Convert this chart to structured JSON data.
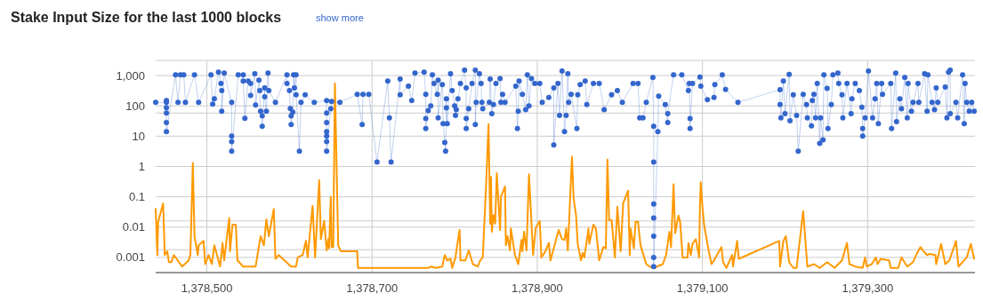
{
  "chart_data": {
    "type": "line",
    "title": "Stake Input Size for the last 1000 blocks",
    "subtitle": "show more",
    "log": "y",
    "grid": true,
    "xlim": [
      1378438,
      1379430
    ],
    "ylim": [
      0.000316,
      3162
    ],
    "xticks": [
      {
        "value": 1378500,
        "label": "1,378,500"
      },
      {
        "value": 1378700,
        "label": "1,378,700"
      },
      {
        "value": 1378900,
        "label": "1,378,900"
      },
      {
        "value": 1379100,
        "label": "1,379,100"
      },
      {
        "value": 1379300,
        "label": "1,379,300"
      }
    ],
    "yticks": [
      0.001,
      {
        "value": 0.0018,
        "label": null
      },
      0.01,
      {
        "value": 0.016,
        "label": null
      },
      0.1,
      1,
      10,
      {
        "value": 58,
        "label": null
      },
      100,
      {
        "value": 1000,
        "label": "1,000"
      },
      {
        "value": 3162,
        "label": null
      }
    ],
    "series": [
      {
        "type": "line",
        "marker": "none",
        "color": "#ff9900",
        "x": [
          1378438,
          1378440,
          1378441,
          1378447,
          1378449,
          1378452,
          1378454,
          1378457,
          1378460,
          1378470,
          1378478,
          1378480,
          1378483,
          1378485,
          1378489,
          1378490,
          1378496,
          1378498,
          1378502,
          1378506,
          1378509,
          1378516,
          1378519,
          1378521,
          1378527,
          1378528,
          1378531,
          1378535,
          1378537,
          1378544,
          1378559,
          1378565,
          1378569,
          1378572,
          1378575,
          1378581,
          1378583,
          1378587,
          1378594,
          1378602,
          1378608,
          1378610,
          1378616,
          1378620,
          1378622,
          1378628,
          1378631,
          1378636,
          1378638,
          1378642,
          1378645,
          1378647,
          1378648,
          1378650,
          1378651,
          1378653,
          1378655,
          1378659,
          1378662,
          1378682,
          1378683,
          1378768,
          1378772,
          1378777,
          1378785,
          1378788,
          1378791,
          1378795,
          1378797,
          1378801,
          1378803,
          1378806,
          1378807,
          1378813,
          1378817,
          1378822,
          1378828,
          1378831,
          1378834,
          1378838,
          1378841,
          1378843,
          1378844,
          1378845,
          1378847,
          1378849,
          1378851,
          1378855,
          1378856,
          1378861,
          1378862,
          1378864,
          1378867,
          1378868,
          1378873,
          1378877,
          1378881,
          1378882,
          1378884,
          1378887,
          1378890,
          1378895,
          1378898,
          1378903,
          1378905,
          1378910,
          1378914,
          1378916,
          1378926,
          1378930,
          1378933,
          1378935,
          1378937,
          1378942,
          1378944,
          1378947,
          1378949,
          1378953,
          1378955,
          1378957,
          1378962,
          1378963,
          1378968,
          1378971,
          1378975,
          1378980,
          1378983,
          1378985,
          1378987,
          1378990,
          1378994,
          1378997,
          1379001,
          1379004,
          1379010,
          1379012,
          1379013,
          1379017,
          1379019,
          1379022,
          1379025,
          1379032,
          1379036,
          1379041,
          1379052,
          1379056,
          1379060,
          1379062,
          1379065,
          1379067,
          1379071,
          1379073,
          1379076,
          1379082,
          1379083,
          1379086,
          1379088,
          1379092,
          1379096,
          1379097,
          1379098,
          1379100,
          1379102,
          1379107,
          1379111,
          1379114,
          1379123,
          1379125,
          1379129,
          1379136,
          1379137,
          1379142,
          1379144,
          1379193,
          1379194,
          1379198,
          1379201,
          1379205,
          1379210,
          1379214,
          1379222,
          1379227,
          1379235,
          1379242,
          1379251,
          1379260,
          1379269,
          1379275,
          1379278,
          1379285,
          1379294,
          1379297,
          1379299,
          1379305,
          1379310,
          1379312,
          1379316,
          1379326,
          1379328,
          1379337,
          1379341,
          1379348,
          1379355,
          1379360,
          1379364,
          1379367,
          1379372,
          1379375,
          1379382,
          1379383,
          1379389,
          1379394,
          1379399,
          1379407,
          1379410,
          1379415,
          1379420,
          1379425,
          1379429
        ],
        "values": [
          0.04,
          0.0012,
          0.015,
          0.06,
          0.0012,
          0.0016,
          0.0007,
          0.0007,
          0.0012,
          0.0005,
          0.0008,
          0.0012,
          1.3,
          0.005,
          0.0012,
          0.0025,
          0.0035,
          0.0006,
          0.0012,
          0.0006,
          0.0025,
          0.0005,
          0.003,
          0.0008,
          0.02,
          0.0016,
          0.012,
          0.012,
          0.0008,
          0.0005,
          0.0005,
          0.005,
          0.0025,
          0.018,
          0.005,
          0.04,
          0.0009,
          0.0012,
          0.0008,
          0.0005,
          0.0005,
          0.001,
          0.0012,
          0.0035,
          0.001,
          0.05,
          0.001,
          0.35,
          0.004,
          0.016,
          0.0017,
          0.004,
          0.002,
          0.1,
          0.0022,
          0.0022,
          550,
          0.0025,
          0.0016,
          0.0016,
          0.00045,
          0.00045,
          0.0005,
          0.00045,
          0.0005,
          0.0012,
          0.0008,
          0.0009,
          0.00045,
          0.001,
          0.0025,
          0.008,
          0.0008,
          0.0008,
          0.0017,
          0.0006,
          0.0005,
          0.0008,
          0.001,
          0.22,
          25,
          0.013,
          0.45,
          0.007,
          0.025,
          0.013,
          0.6,
          0.008,
          0.1,
          0.22,
          0.0025,
          0.005,
          0.0017,
          0.009,
          0.0012,
          0.0006,
          0.0038,
          0.0016,
          0.007,
          0.0017,
          0.55,
          0.0012,
          0.009,
          0.016,
          0.001,
          0.0016,
          0.003,
          0.0008,
          0.008,
          0.004,
          0.0038,
          0.009,
          0.0017,
          2.1,
          0.09,
          0.024,
          0.0028,
          0.0008,
          0.0014,
          0.001,
          0.009,
          0.0028,
          0.012,
          0.009,
          0.0008,
          0.0022,
          0.002,
          1.7,
          0.017,
          0.017,
          0.001,
          0.047,
          0.0016,
          0.06,
          0.16,
          0.0012,
          0.009,
          0.002,
          0.015,
          0.015,
          0.0025,
          0.0006,
          0.0005,
          0.00045,
          0.0006,
          0.0012,
          0.007,
          0.0022,
          0.26,
          0.0063,
          0.024,
          0.015,
          0.001,
          0.001,
          0.003,
          0.0012,
          0.0028,
          0.004,
          0.001,
          0.058,
          0.3,
          0.047,
          0.012,
          0.002,
          0.0006,
          0.0008,
          0.0022,
          0.0007,
          0.00045,
          0.0012,
          0.0005,
          0.0035,
          0.0009,
          0.0035,
          0.0005,
          0.0035,
          0.005,
          0.0007,
          0.00045,
          0.00045,
          0.034,
          0.0005,
          0.0006,
          0.00045,
          0.0007,
          0.00045,
          0.0008,
          0.003,
          0.0006,
          0.0005,
          0.00045,
          0.001,
          0.0005,
          0.0006,
          0.001,
          0.0006,
          0.0009,
          0.0008,
          0.00045,
          0.00045,
          0.001,
          0.0005,
          0.0007,
          0.0014,
          0.0022,
          0.0017,
          0.0012,
          0.0013,
          0.0012,
          0.0006,
          0.0028,
          0.0006,
          0.0008,
          0.0035,
          0.0005,
          0.0007,
          0.001,
          0.0028,
          0.0009
        ]
      },
      {
        "type": "line",
        "marker": "circle",
        "color": "#3366cc",
        "x": [
          1378438,
          1378451,
          1378451,
          1378451,
          1378451,
          1378451,
          1378451,
          1378462,
          1378465,
          1378468,
          1378472,
          1378474,
          1378485,
          1378490,
          1378505,
          1378507,
          1378509,
          1378514,
          1378517,
          1378518,
          1378518,
          1378521,
          1378530,
          1378530,
          1378530,
          1378530,
          1378538,
          1378544,
          1378544,
          1378546,
          1378550,
          1378553,
          1378553,
          1378558,
          1378559,
          1378563,
          1378564,
          1378565,
          1378567,
          1378567,
          1378570,
          1378570,
          1378572,
          1378574,
          1378575,
          1378583,
          1378597,
          1378597,
          1378600,
          1378601,
          1378602,
          1378602,
          1378604,
          1378605,
          1378606,
          1378608,
          1378608,
          1378612,
          1378614,
          1378619,
          1378630,
          1378645,
          1378645,
          1378645,
          1378645,
          1378645,
          1378645,
          1378645,
          1378650,
          1378651,
          1378661,
          1378682,
          1378688,
          1378689,
          1378696,
          1378706,
          1378719,
          1378721,
          1378723,
          1378734,
          1378734,
          1378744,
          1378748,
          1378752,
          1378763,
          1378765,
          1378765,
          1378765,
          1378768,
          1378771,
          1378773,
          1378775,
          1378779,
          1378780,
          1378780,
          1378785,
          1378786,
          1378788,
          1378789,
          1378790,
          1378790,
          1378791,
          1378795,
          1378797,
          1378800,
          1378801,
          1378802,
          1378804,
          1378807,
          1378812,
          1378814,
          1378814,
          1378814,
          1378817,
          1378821,
          1378825,
          1378825,
          1378826,
          1378830,
          1378832,
          1378833,
          1378834,
          1378842,
          1378843,
          1378845,
          1378847,
          1378850,
          1378855,
          1378856,
          1378858,
          1378861,
          1378874,
          1378876,
          1378877,
          1378878,
          1378882,
          1378886,
          1378888,
          1378890,
          1378893,
          1378897,
          1378903,
          1378906,
          1378914,
          1378920,
          1378920,
          1378925,
          1378927,
          1378930,
          1378933,
          1378935,
          1378937,
          1378938,
          1378941,
          1378948,
          1378949,
          1378952,
          1378958,
          1378960,
          1378968,
          1378975,
          1378981,
          1378990,
          1378997,
          1379003,
          1379016,
          1379022,
          1379024,
          1379028,
          1379032,
          1379040,
          1379041,
          1379041,
          1379041,
          1379041,
          1379041,
          1379041,
          1379041,
          1379046,
          1379047,
          1379055,
          1379058,
          1379058,
          1379065,
          1379075,
          1379083,
          1379084,
          1379085,
          1379085,
          1379088,
          1379097,
          1379098,
          1379106,
          1379114,
          1379115,
          1379124,
          1379128,
          1379143,
          1379194,
          1379194,
          1379195,
          1379198,
          1379200,
          1379205,
          1379206,
          1379210,
          1379214,
          1379216,
          1379222,
          1379226,
          1379227,
          1379232,
          1379233,
          1379235,
          1379237,
          1379239,
          1379242,
          1379243,
          1379246,
          1379247,
          1379251,
          1379252,
          1379256,
          1379258,
          1379264,
          1379265,
          1379269,
          1379270,
          1379275,
          1379280,
          1379281,
          1379285,
          1379290,
          1379293,
          1379294,
          1379294,
          1379297,
          1379301,
          1379306,
          1379309,
          1379311,
          1379313,
          1379317,
          1379318,
          1379328,
          1379329,
          1379334,
          1379335,
          1379339,
          1379341,
          1379345,
          1379348,
          1379349,
          1379353,
          1379355,
          1379361,
          1379362,
          1379369,
          1379372,
          1379373,
          1379378,
          1379381,
          1379383,
          1379385,
          1379394,
          1379396,
          1379398,
          1379400,
          1379400,
          1379407,
          1379409,
          1379415,
          1379417,
          1379418,
          1379420,
          1379423,
          1379426,
          1379429
        ],
        "values": [
          130,
          130,
          150,
          87,
          58,
          28,
          14,
          1050,
          130,
          1050,
          1050,
          130,
          1050,
          130,
          1050,
          115,
          170,
          1300,
          550,
          320,
          66,
          1200,
          130,
          10,
          6.6,
          3.2,
          1050,
          1050,
          660,
          39,
          660,
          550,
          220,
          1150,
          107,
          700,
          320,
          66,
          47,
          21,
          390,
          200,
          66,
          1200,
          320,
          130,
          1050,
          550,
          320,
          82,
          47,
          24,
          62,
          1050,
          390,
          1050,
          230,
          3.2,
          130,
          230,
          130,
          150,
          58,
          28,
          14,
          10,
          6.6,
          3.2,
          80,
          140,
          130,
          240,
          24,
          240,
          240,
          1.4,
          660,
          40,
          1.4,
          770,
          230,
          450,
          150,
          1200,
          1300,
          240,
          38,
          18,
          70,
          100,
          1050,
          550,
          240,
          700,
          40,
          500,
          26,
          6.2,
          3.2,
          170,
          85,
          26,
          1150,
          320,
          100,
          48,
          75,
          170,
          550,
          1500,
          390,
          38,
          18,
          80,
          550,
          1500,
          24,
          130,
          1150,
          550,
          130,
          80,
          130,
          770,
          55,
          110,
          550,
          800,
          130,
          240,
          130,
          450,
          18,
          66,
          660,
          240,
          75,
          1050,
          100,
          800,
          550,
          550,
          130,
          190,
          390,
          5.1,
          550,
          48,
          1400,
          14,
          48,
          1150,
          130,
          240,
          18,
          230,
          500,
          660,
          110,
          550,
          550,
          75,
          230,
          320,
          130,
          550,
          550,
          40,
          40,
          130,
          870,
          21,
          1.4,
          0.058,
          0.02,
          0.005,
          0.001,
          0.0005,
          14,
          210,
          110,
          28,
          55,
          1050,
          1050,
          320,
          550,
          38,
          18,
          550,
          900,
          450,
          160,
          190,
          500,
          1050,
          350,
          130,
          340,
          110,
          40,
          660,
          55,
          1100,
          32,
          230,
          48,
          3.2,
          240,
          110,
          40,
          22,
          150,
          240,
          40,
          550,
          5.8,
          40,
          7.6,
          1050,
          380,
          18,
          110,
          1050,
          1200,
          550,
          230,
          40,
          550,
          55,
          170,
          550,
          320,
          90,
          18,
          10,
          40,
          1400,
          40,
          170,
          550,
          26,
          550,
          240,
          550,
          18,
          1200,
          30,
          170,
          80,
          870,
          40,
          550,
          66,
          130,
          550,
          130,
          1150,
          66,
          1050,
          130,
          75,
          390,
          130,
          420,
          40,
          1300,
          1500,
          55,
          130,
          40,
          1050,
          26,
          550,
          130,
          66,
          130,
          66
        ]
      }
    ]
  }
}
